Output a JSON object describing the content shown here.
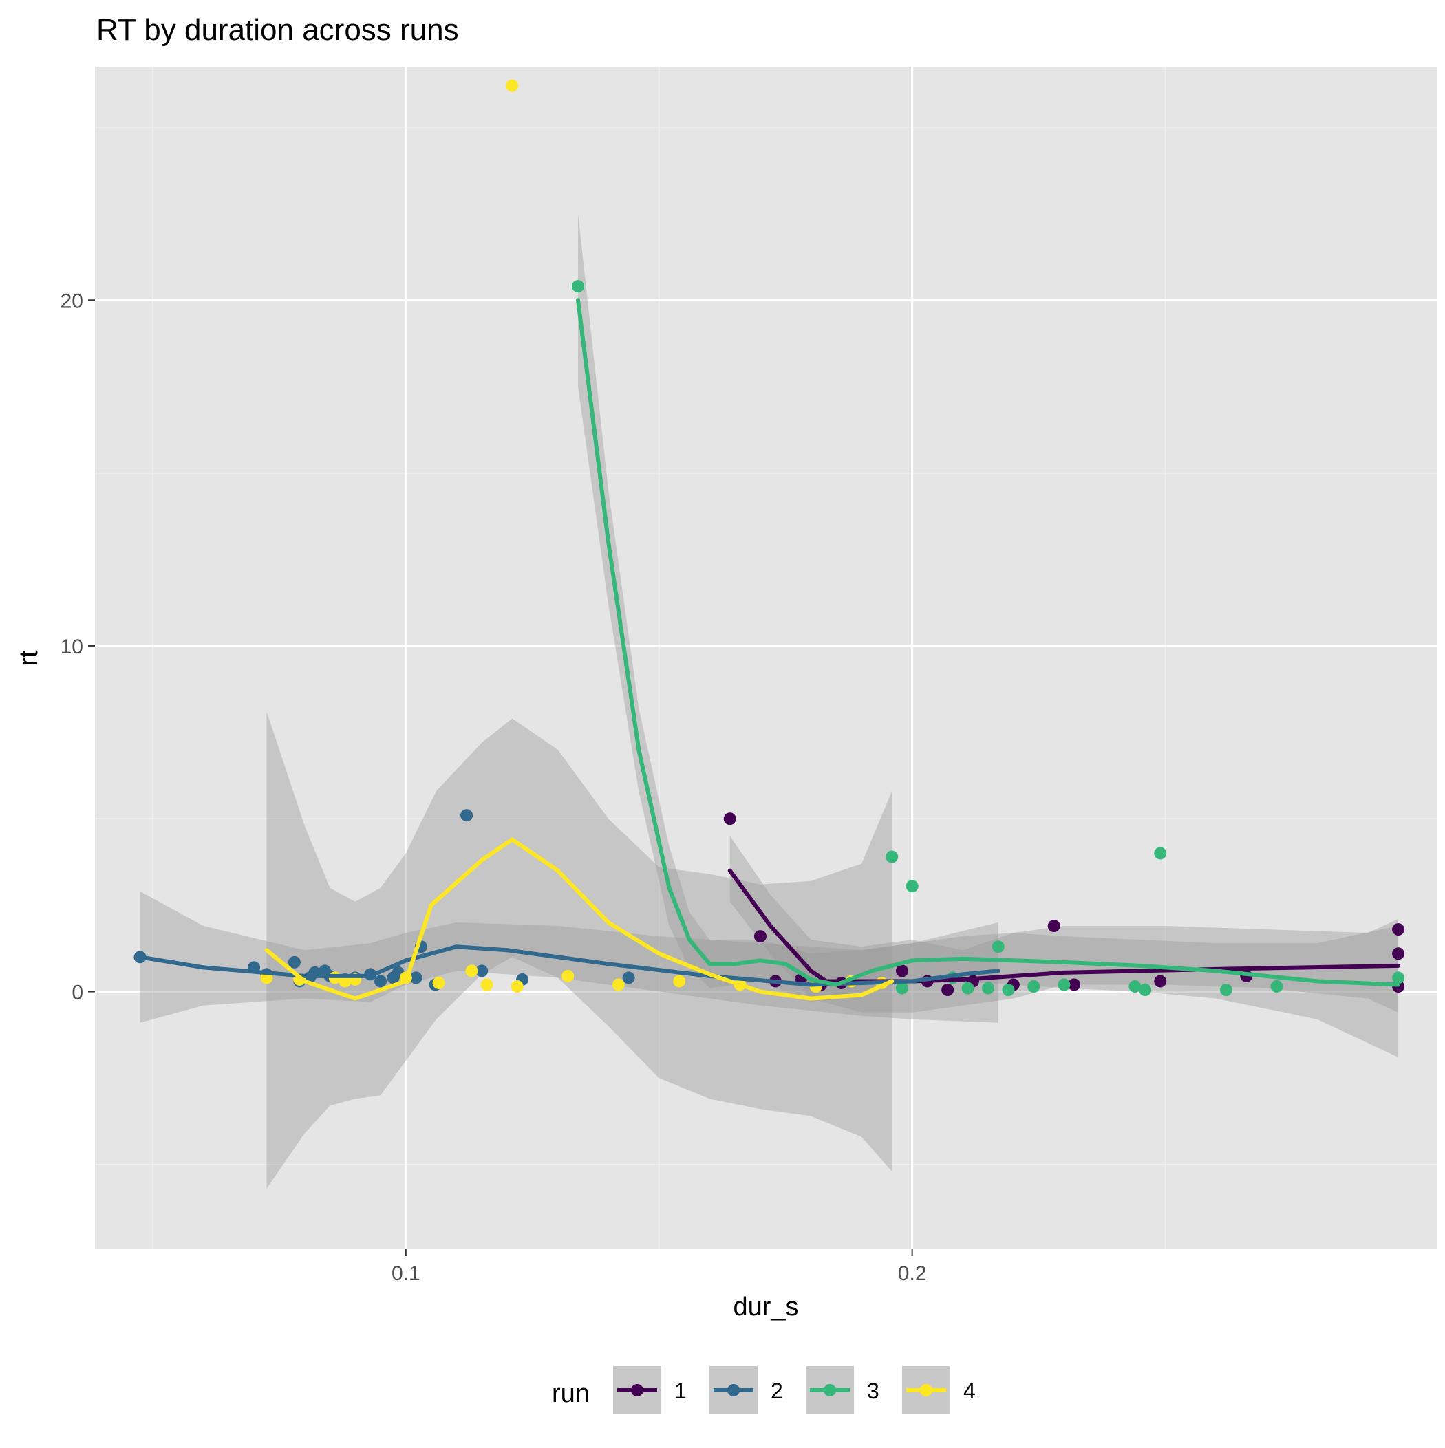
{
  "chart_data": {
    "type": "scatter",
    "title": "RT by duration across runs",
    "xlabel": "dur_s",
    "ylabel": "rt",
    "xlim": [
      0.0386,
      0.3036
    ],
    "ylim": [
      -7.45,
      26.75
    ],
    "x_ticks": [
      {
        "value": 0.1,
        "label": "0.1"
      },
      {
        "value": 0.2,
        "label": "0.2"
      }
    ],
    "x_minor_ticks": [
      0.05,
      0.15,
      0.25
    ],
    "y_ticks": [
      {
        "value": 0,
        "label": "0"
      },
      {
        "value": 10,
        "label": "10"
      },
      {
        "value": 20,
        "label": "20"
      }
    ],
    "y_minor_ticks": [
      -5,
      5,
      15,
      25
    ],
    "grid": true,
    "legend": {
      "title": "run",
      "position": "bottom"
    },
    "series": [
      {
        "name": "1",
        "color": "#440154",
        "points": [
          [
            0.164,
            5.0
          ],
          [
            0.17,
            1.6
          ],
          [
            0.173,
            0.3
          ],
          [
            0.178,
            0.35
          ],
          [
            0.182,
            0.2
          ],
          [
            0.186,
            0.25
          ],
          [
            0.198,
            0.6
          ],
          [
            0.203,
            0.3
          ],
          [
            0.207,
            0.05
          ],
          [
            0.212,
            0.3
          ],
          [
            0.22,
            0.2
          ],
          [
            0.228,
            1.9
          ],
          [
            0.232,
            0.2
          ],
          [
            0.249,
            0.3
          ],
          [
            0.266,
            0.45
          ],
          [
            0.296,
            1.1
          ],
          [
            0.296,
            1.8
          ],
          [
            0.296,
            0.15
          ]
        ],
        "smooth": [
          [
            0.164,
            3.5
          ],
          [
            0.172,
            1.9
          ],
          [
            0.18,
            0.6
          ],
          [
            0.183,
            0.3
          ],
          [
            0.2,
            0.3
          ],
          [
            0.21,
            0.35
          ],
          [
            0.23,
            0.55
          ],
          [
            0.26,
            0.65
          ],
          [
            0.296,
            0.75
          ]
        ],
        "band_upper": [
          [
            0.164,
            4.5
          ],
          [
            0.172,
            2.8
          ],
          [
            0.18,
            1.5
          ],
          [
            0.19,
            1.3
          ],
          [
            0.2,
            1.5
          ],
          [
            0.21,
            1.2
          ],
          [
            0.22,
            1.7
          ],
          [
            0.23,
            1.9
          ],
          [
            0.25,
            1.9
          ],
          [
            0.27,
            1.8
          ],
          [
            0.29,
            1.7
          ],
          [
            0.296,
            2.1
          ]
        ],
        "band_lower": [
          [
            0.164,
            2.6
          ],
          [
            0.172,
            1.1
          ],
          [
            0.18,
            -0.2
          ],
          [
            0.19,
            -0.6
          ],
          [
            0.2,
            -0.6
          ],
          [
            0.21,
            -0.4
          ],
          [
            0.22,
            -0.2
          ],
          [
            0.23,
            0.2
          ],
          [
            0.25,
            0.2
          ],
          [
            0.27,
            0.1
          ],
          [
            0.29,
            -0.2
          ],
          [
            0.296,
            -0.6
          ]
        ]
      },
      {
        "name": "2",
        "color": "#31688E",
        "points": [
          [
            0.0475,
            1.0
          ],
          [
            0.07,
            0.7
          ],
          [
            0.0725,
            0.5
          ],
          [
            0.078,
            0.85
          ],
          [
            0.079,
            0.3
          ],
          [
            0.081,
            0.4
          ],
          [
            0.082,
            0.55
          ],
          [
            0.084,
            0.6
          ],
          [
            0.085,
            0.45
          ],
          [
            0.088,
            0.35
          ],
          [
            0.09,
            0.4
          ],
          [
            0.093,
            0.5
          ],
          [
            0.095,
            0.3
          ],
          [
            0.0975,
            0.4
          ],
          [
            0.0985,
            0.55
          ],
          [
            0.102,
            0.4
          ],
          [
            0.103,
            1.3
          ],
          [
            0.1058,
            0.2
          ],
          [
            0.112,
            5.1
          ],
          [
            0.115,
            0.6
          ],
          [
            0.123,
            0.35
          ],
          [
            0.144,
            0.4
          ]
        ],
        "smooth": [
          [
            0.0475,
            1.0
          ],
          [
            0.06,
            0.7
          ],
          [
            0.08,
            0.45
          ],
          [
            0.093,
            0.45
          ],
          [
            0.1,
            0.9
          ],
          [
            0.11,
            1.3
          ],
          [
            0.12,
            1.2
          ],
          [
            0.14,
            0.8
          ],
          [
            0.16,
            0.45
          ],
          [
            0.18,
            0.2
          ],
          [
            0.2,
            0.3
          ],
          [
            0.21,
            0.5
          ],
          [
            0.217,
            0.6
          ]
        ],
        "band_upper": [
          [
            0.0475,
            2.9
          ],
          [
            0.06,
            1.9
          ],
          [
            0.08,
            1.2
          ],
          [
            0.093,
            1.4
          ],
          [
            0.1,
            1.7
          ],
          [
            0.11,
            2.0
          ],
          [
            0.13,
            1.9
          ],
          [
            0.15,
            1.6
          ],
          [
            0.17,
            1.4
          ],
          [
            0.19,
            1.2
          ],
          [
            0.2,
            1.4
          ],
          [
            0.217,
            2.0
          ]
        ],
        "band_lower": [
          [
            0.0475,
            -0.9
          ],
          [
            0.06,
            -0.4
          ],
          [
            0.08,
            -0.2
          ],
          [
            0.093,
            -0.3
          ],
          [
            0.1,
            0.2
          ],
          [
            0.11,
            0.6
          ],
          [
            0.13,
            0.4
          ],
          [
            0.15,
            0.0
          ],
          [
            0.17,
            -0.4
          ],
          [
            0.19,
            -0.7
          ],
          [
            0.2,
            -0.8
          ],
          [
            0.217,
            -0.9
          ]
        ]
      },
      {
        "name": "3",
        "color": "#35B779",
        "points": [
          [
            0.134,
            20.4
          ],
          [
            0.196,
            3.9
          ],
          [
            0.198,
            0.1
          ],
          [
            0.2,
            3.05
          ],
          [
            0.208,
            0.4
          ],
          [
            0.211,
            0.1
          ],
          [
            0.215,
            0.1
          ],
          [
            0.217,
            1.3
          ],
          [
            0.219,
            0.05
          ],
          [
            0.224,
            0.15
          ],
          [
            0.23,
            0.2
          ],
          [
            0.244,
            0.15
          ],
          [
            0.246,
            0.05
          ],
          [
            0.249,
            4.0
          ],
          [
            0.262,
            0.05
          ],
          [
            0.272,
            0.15
          ],
          [
            0.296,
            0.4
          ]
        ],
        "smooth": [
          [
            0.134,
            20.0
          ],
          [
            0.14,
            13.0
          ],
          [
            0.146,
            7.0
          ],
          [
            0.152,
            3.0
          ],
          [
            0.156,
            1.5
          ],
          [
            0.16,
            0.8
          ],
          [
            0.165,
            0.8
          ],
          [
            0.17,
            0.9
          ],
          [
            0.175,
            0.8
          ],
          [
            0.18,
            0.35
          ],
          [
            0.185,
            0.2
          ],
          [
            0.192,
            0.6
          ],
          [
            0.2,
            0.9
          ],
          [
            0.21,
            0.95
          ],
          [
            0.22,
            0.9
          ],
          [
            0.23,
            0.85
          ],
          [
            0.245,
            0.75
          ],
          [
            0.26,
            0.6
          ],
          [
            0.28,
            0.3
          ],
          [
            0.296,
            0.2
          ]
        ],
        "band_upper": [
          [
            0.134,
            22.5
          ],
          [
            0.14,
            14.5
          ],
          [
            0.146,
            8.2
          ],
          [
            0.152,
            4.2
          ],
          [
            0.156,
            2.3
          ],
          [
            0.16,
            1.5
          ],
          [
            0.17,
            1.5
          ],
          [
            0.18,
            1.1
          ],
          [
            0.19,
            1.2
          ],
          [
            0.2,
            1.4
          ],
          [
            0.21,
            1.6
          ],
          [
            0.22,
            1.7
          ],
          [
            0.23,
            1.6
          ],
          [
            0.245,
            1.5
          ],
          [
            0.26,
            1.4
          ],
          [
            0.28,
            1.4
          ],
          [
            0.296,
            1.9
          ]
        ],
        "band_lower": [
          [
            0.134,
            17.5
          ],
          [
            0.14,
            11.2
          ],
          [
            0.146,
            5.8
          ],
          [
            0.152,
            1.9
          ],
          [
            0.156,
            0.7
          ],
          [
            0.16,
            0.1
          ],
          [
            0.17,
            0.3
          ],
          [
            0.18,
            -0.3
          ],
          [
            0.19,
            0.0
          ],
          [
            0.2,
            0.3
          ],
          [
            0.21,
            0.3
          ],
          [
            0.22,
            0.2
          ],
          [
            0.23,
            0.1
          ],
          [
            0.245,
            0.0
          ],
          [
            0.26,
            -0.2
          ],
          [
            0.28,
            -0.8
          ],
          [
            0.296,
            -1.9
          ]
        ]
      },
      {
        "name": "4",
        "color": "#FDE725",
        "points": [
          [
            0.0725,
            0.4
          ],
          [
            0.079,
            0.35
          ],
          [
            0.086,
            0.4
          ],
          [
            0.088,
            0.3
          ],
          [
            0.09,
            0.35
          ],
          [
            0.1,
            0.4
          ],
          [
            0.1065,
            0.25
          ],
          [
            0.113,
            0.6
          ],
          [
            0.116,
            0.2
          ],
          [
            0.121,
            26.2
          ],
          [
            0.122,
            0.15
          ],
          [
            0.132,
            0.45
          ],
          [
            0.142,
            0.2
          ],
          [
            0.154,
            0.3
          ],
          [
            0.166,
            0.2
          ],
          [
            0.181,
            0.15
          ],
          [
            0.188,
            0.3
          ],
          [
            0.194,
            0.25
          ]
        ],
        "smooth": [
          [
            0.0725,
            1.2
          ],
          [
            0.08,
            0.3
          ],
          [
            0.09,
            -0.2
          ],
          [
            0.1,
            0.3
          ],
          [
            0.105,
            2.5
          ],
          [
            0.115,
            3.8
          ],
          [
            0.121,
            4.4
          ],
          [
            0.13,
            3.5
          ],
          [
            0.14,
            2.0
          ],
          [
            0.15,
            1.1
          ],
          [
            0.16,
            0.5
          ],
          [
            0.17,
            0.0
          ],
          [
            0.18,
            -0.2
          ],
          [
            0.19,
            -0.1
          ],
          [
            0.196,
            0.3
          ]
        ],
        "band_upper": [
          [
            0.0725,
            8.1
          ],
          [
            0.08,
            4.8
          ],
          [
            0.085,
            3.0
          ],
          [
            0.09,
            2.6
          ],
          [
            0.095,
            3.0
          ],
          [
            0.1,
            4.0
          ],
          [
            0.106,
            5.8
          ],
          [
            0.115,
            7.2
          ],
          [
            0.121,
            7.9
          ],
          [
            0.13,
            7.0
          ],
          [
            0.14,
            5.0
          ],
          [
            0.15,
            3.6
          ],
          [
            0.16,
            3.4
          ],
          [
            0.17,
            3.1
          ],
          [
            0.18,
            3.2
          ],
          [
            0.19,
            3.7
          ],
          [
            0.196,
            5.8
          ]
        ],
        "band_lower": [
          [
            0.0725,
            -5.7
          ],
          [
            0.08,
            -4.1
          ],
          [
            0.085,
            -3.3
          ],
          [
            0.09,
            -3.1
          ],
          [
            0.095,
            -3.0
          ],
          [
            0.1,
            -2.0
          ],
          [
            0.106,
            -0.8
          ],
          [
            0.115,
            0.5
          ],
          [
            0.121,
            1.0
          ],
          [
            0.13,
            0.4
          ],
          [
            0.14,
            -1.0
          ],
          [
            0.15,
            -2.5
          ],
          [
            0.16,
            -3.1
          ],
          [
            0.17,
            -3.4
          ],
          [
            0.18,
            -3.6
          ],
          [
            0.19,
            -4.2
          ],
          [
            0.196,
            -5.2
          ]
        ]
      }
    ]
  }
}
